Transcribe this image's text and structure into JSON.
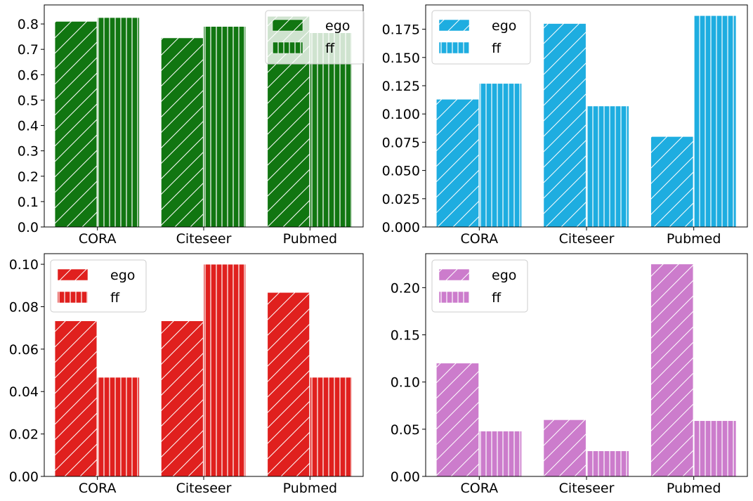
{
  "chart_data": [
    {
      "type": "bar",
      "categories": [
        "CORA",
        "Citeseer",
        "Pubmed"
      ],
      "series": [
        {
          "name": "ego",
          "values": [
            0.81,
            0.745,
            0.83
          ],
          "hatch": "diagonal"
        },
        {
          "name": "ff",
          "values": [
            0.825,
            0.79,
            0.765
          ],
          "hatch": "vertical"
        }
      ],
      "color": "#117611",
      "ylim": [
        0,
        0.875
      ],
      "yticks": [
        "0.0",
        "0.1",
        "0.2",
        "0.3",
        "0.4",
        "0.5",
        "0.6",
        "0.7",
        "0.8"
      ],
      "legend": "top-right",
      "grid": false
    },
    {
      "type": "bar",
      "categories": [
        "CORA",
        "Citeseer",
        "Pubmed"
      ],
      "series": [
        {
          "name": "ego",
          "values": [
            0.113,
            0.18,
            0.08
          ],
          "hatch": "diagonal"
        },
        {
          "name": "ff",
          "values": [
            0.127,
            0.107,
            0.187
          ],
          "hatch": "vertical"
        }
      ],
      "color": "#1eade0",
      "ylim": [
        0,
        0.1965
      ],
      "yticks": [
        "0.000",
        "0.025",
        "0.050",
        "0.075",
        "0.100",
        "0.125",
        "0.150",
        "0.175"
      ],
      "legend": "top-left",
      "grid": false
    },
    {
      "type": "bar",
      "categories": [
        "CORA",
        "Citeseer",
        "Pubmed"
      ],
      "series": [
        {
          "name": "ego",
          "values": [
            0.0733,
            0.0733,
            0.0867
          ],
          "hatch": "diagonal"
        },
        {
          "name": "ff",
          "values": [
            0.0467,
            0.1,
            0.0467
          ],
          "hatch": "vertical"
        }
      ],
      "color": "#e0201e",
      "ylim": [
        0,
        0.105
      ],
      "yticks": [
        "0.00",
        "0.02",
        "0.04",
        "0.06",
        "0.08",
        "0.10"
      ],
      "legend": "top-left",
      "grid": false
    },
    {
      "type": "bar",
      "categories": [
        "CORA",
        "Citeseer",
        "Pubmed"
      ],
      "series": [
        {
          "name": "ego",
          "values": [
            0.12,
            0.06,
            0.225
          ],
          "hatch": "diagonal"
        },
        {
          "name": "ff",
          "values": [
            0.048,
            0.027,
            0.059
          ],
          "hatch": "vertical"
        }
      ],
      "color": "#cc7ccc",
      "ylim": [
        0,
        0.236
      ],
      "yticks": [
        "0.00",
        "0.05",
        "0.10",
        "0.15",
        "0.20"
      ],
      "legend": "top-left",
      "grid": false
    }
  ]
}
